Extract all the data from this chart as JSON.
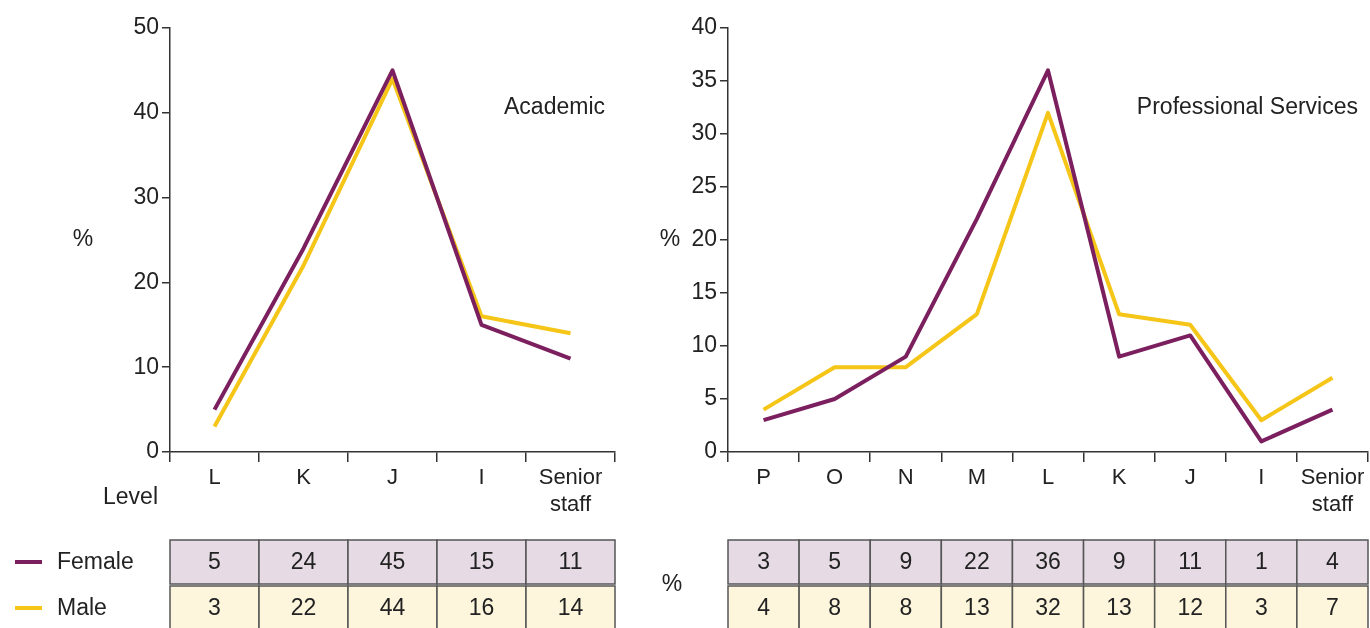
{
  "chart_data": [
    {
      "type": "line",
      "title": "Academic",
      "xlabel": "Level",
      "ylabel": "%",
      "categories": [
        "L",
        "K",
        "J",
        "I",
        "Senior staff"
      ],
      "series": [
        {
          "name": "Female",
          "color": "#7b1f5e",
          "values": [
            5,
            24,
            45,
            15,
            11
          ]
        },
        {
          "name": "Male",
          "color": "#f5c518",
          "values": [
            3,
            22,
            44,
            16,
            14
          ]
        }
      ],
      "ylim": [
        0,
        50
      ],
      "yticks": [
        0,
        10,
        20,
        30,
        40,
        50
      ],
      "data_labels": true,
      "legend": "bottom left",
      "marker": "none",
      "line_style": "solid"
    },
    {
      "type": "line",
      "title": "Professional Services",
      "ylabel": "%",
      "categories": [
        "P",
        "O",
        "N",
        "M",
        "L",
        "K",
        "J",
        "I",
        "Senior staff"
      ],
      "series": [
        {
          "color": "#7b1f5e",
          "values": [
            3,
            5,
            9,
            22,
            36,
            9,
            11,
            1,
            4
          ]
        },
        {
          "color": "#f5c518",
          "values": [
            4,
            8,
            8,
            13,
            32,
            13,
            12,
            3,
            7
          ]
        }
      ],
      "ylim": [
        0,
        40
      ],
      "yticks": [
        0,
        5,
        10,
        15,
        20,
        25,
        30,
        35,
        40
      ],
      "data_labels": true,
      "annotations": [
        "%"
      ],
      "marker": "none",
      "line_style": "solid"
    }
  ]
}
